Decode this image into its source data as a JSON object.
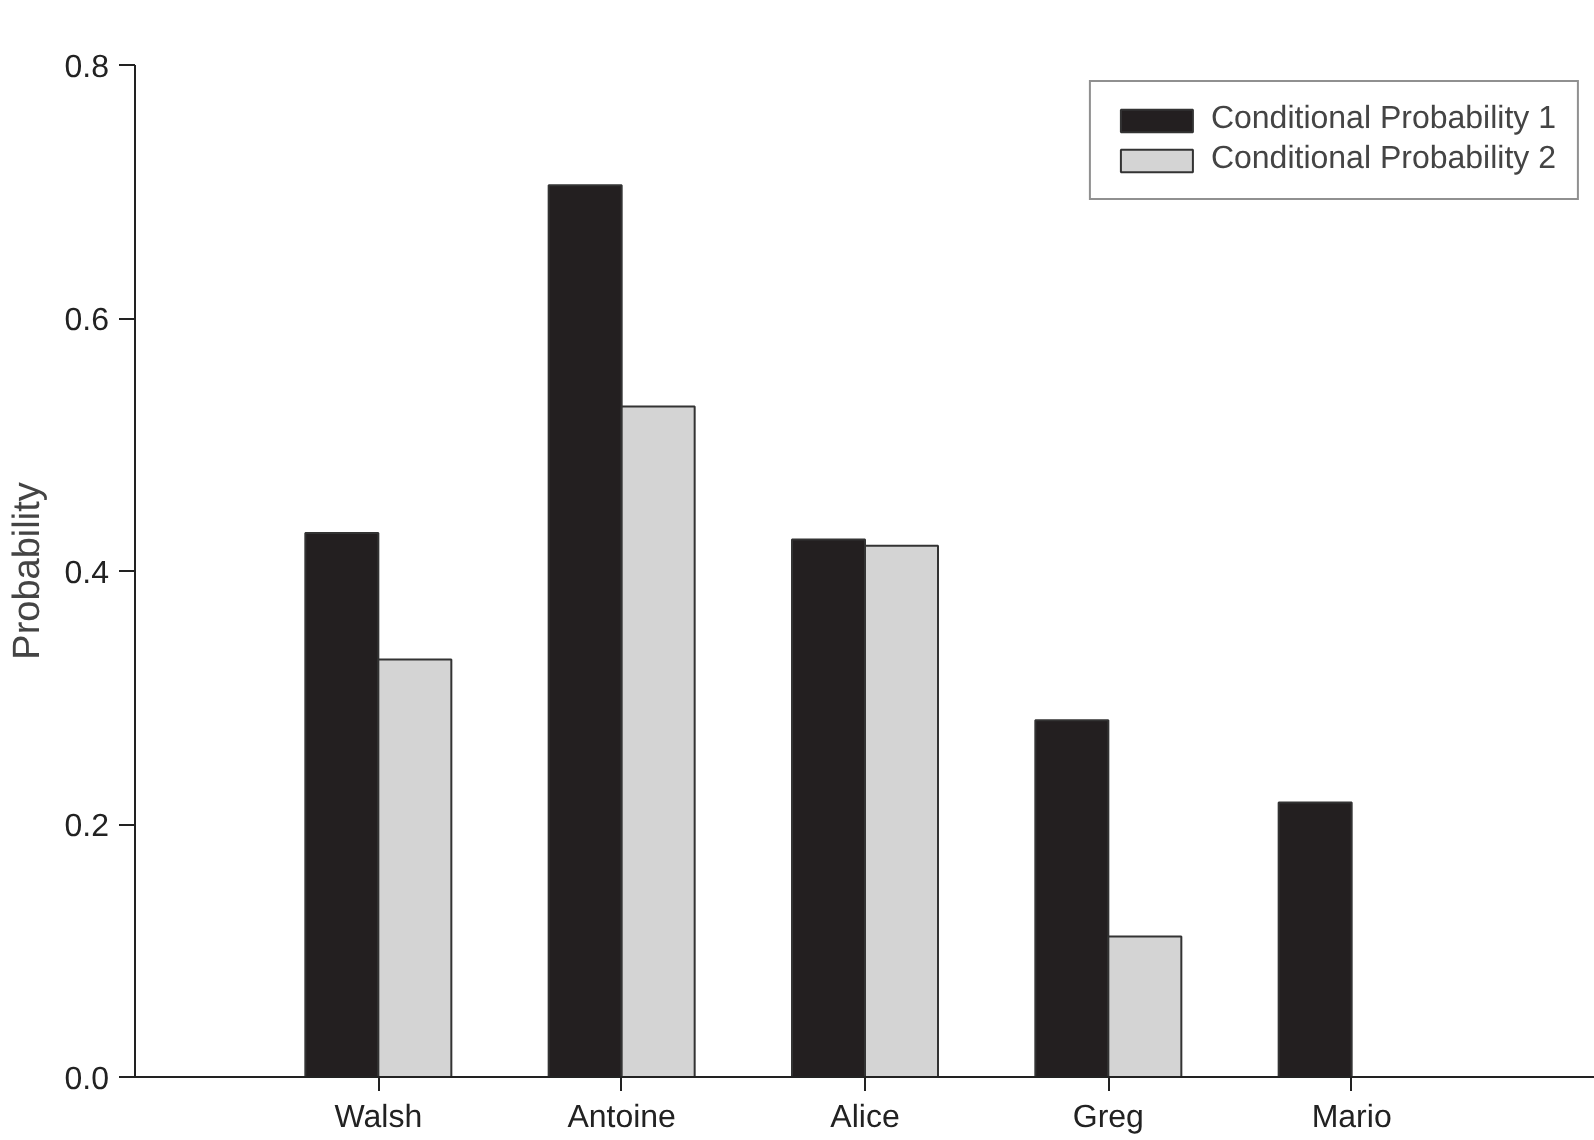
{
  "chart_data": {
    "type": "bar",
    "ylabel": "Probability",
    "categories": [
      "Walsh",
      "Antoine",
      "Alice",
      "Greg",
      "Mario"
    ],
    "series": [
      {
        "name": "Conditional Probability 1",
        "color": "#231f20",
        "values": [
          0.43,
          0.705,
          0.425,
          0.282,
          0.217
        ]
      },
      {
        "name": "Conditional Probability 2",
        "color": "#d4d4d4",
        "values": [
          0.33,
          0.53,
          0.42,
          0.111,
          null
        ]
      }
    ],
    "ylim": [
      0,
      0.8
    ],
    "yticks": [
      {
        "value": 0,
        "label": "0.0"
      },
      0.2,
      0.4,
      0.6,
      0.8
    ],
    "grid": false,
    "legend": "top right"
  }
}
